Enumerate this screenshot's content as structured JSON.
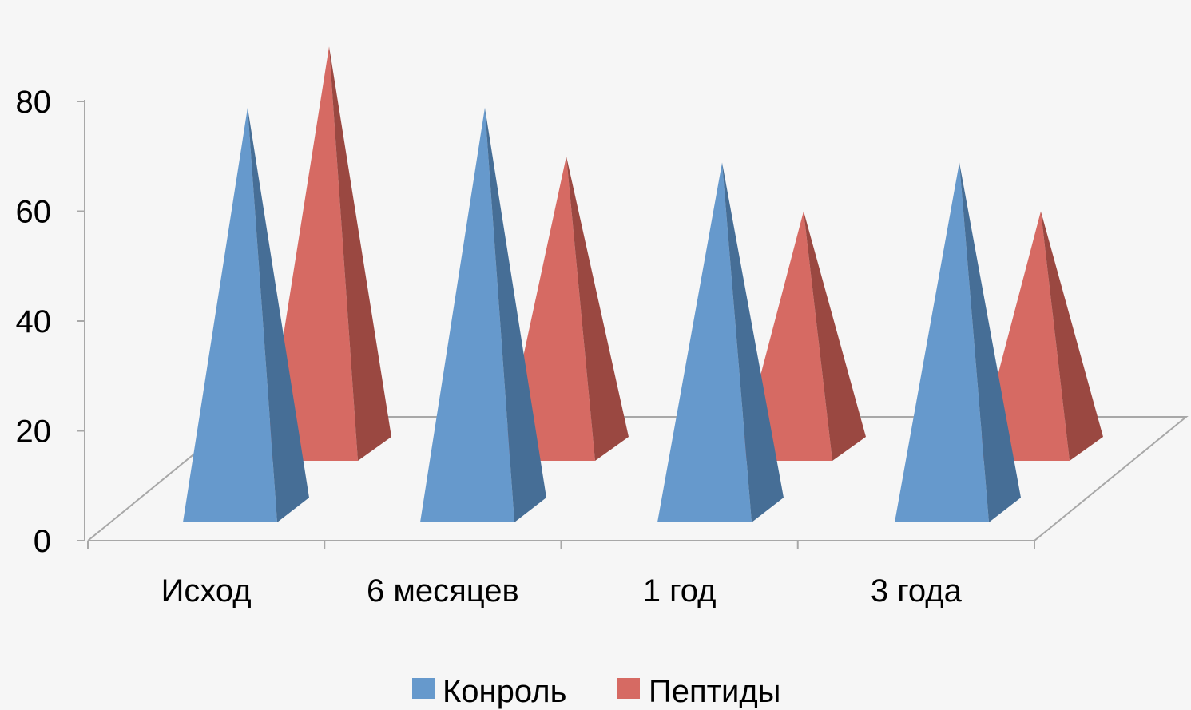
{
  "chart_data": {
    "type": "bar",
    "style": "3d-pyramid",
    "categories": [
      "Исход",
      "6 месяцев",
      "1 год",
      "3 года"
    ],
    "series": [
      {
        "name": "Конроль",
        "values": [
          82,
          82,
          72,
          72
        ],
        "color": "#6699cc",
        "shade": "#466e96"
      },
      {
        "name": "Пептиды",
        "values": [
          82,
          62,
          52,
          52
        ],
        "color": "#d66a63",
        "shade": "#9a4841"
      }
    ],
    "yticks": [
      0,
      20,
      40,
      60,
      80
    ],
    "ylim": [
      0,
      85
    ],
    "legend_position": "bottom",
    "grid": false
  }
}
